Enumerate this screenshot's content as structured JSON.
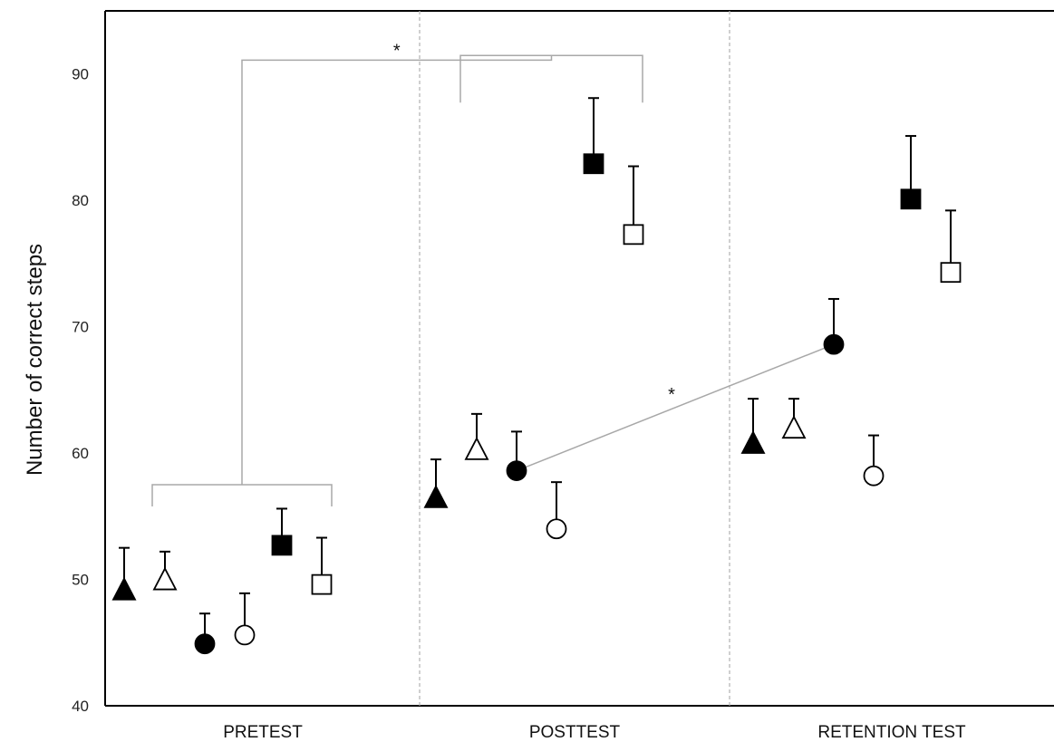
{
  "chart_data": {
    "type": "scatter",
    "title": "",
    "xlabel": "",
    "ylabel": "Number of correct steps",
    "ylim": [
      40,
      95
    ],
    "yticks": [
      40,
      50,
      60,
      70,
      80,
      90
    ],
    "grid": false,
    "legend": "none",
    "categories": [
      "PRETEST",
      "POSTTEST",
      "RETENTION TEST"
    ],
    "series": [
      {
        "marker": "triangle",
        "fill": "#000000",
        "values": [
          49.2,
          56.5,
          60.8
        ],
        "error_upper": [
          52.5,
          59.5,
          64.3
        ]
      },
      {
        "marker": "triangle",
        "fill": "#ffffff",
        "values": [
          50.0,
          60.3,
          62.0
        ],
        "error_upper": [
          52.2,
          63.1,
          64.3
        ]
      },
      {
        "marker": "circle",
        "fill": "#000000",
        "values": [
          44.9,
          58.6,
          68.6
        ],
        "error_upper": [
          47.3,
          61.7,
          72.2
        ]
      },
      {
        "marker": "circle",
        "fill": "#ffffff",
        "values": [
          45.6,
          54.0,
          58.2
        ],
        "error_upper": [
          48.9,
          57.7,
          61.4
        ]
      },
      {
        "marker": "square",
        "fill": "#000000",
        "values": [
          52.7,
          82.9,
          80.1
        ],
        "error_upper": [
          55.6,
          88.1,
          85.1
        ]
      },
      {
        "marker": "square",
        "fill": "#ffffff",
        "values": [
          49.6,
          77.3,
          74.3
        ],
        "error_upper": [
          53.3,
          82.7,
          79.2
        ]
      }
    ],
    "annotations": [
      {
        "text": "*",
        "type": "bracket",
        "connects": "PRETEST group vs POSTTEST group"
      },
      {
        "text": "*",
        "type": "line",
        "connects": "POSTTEST filled circle vs RETENTION TEST filled circle"
      }
    ]
  }
}
